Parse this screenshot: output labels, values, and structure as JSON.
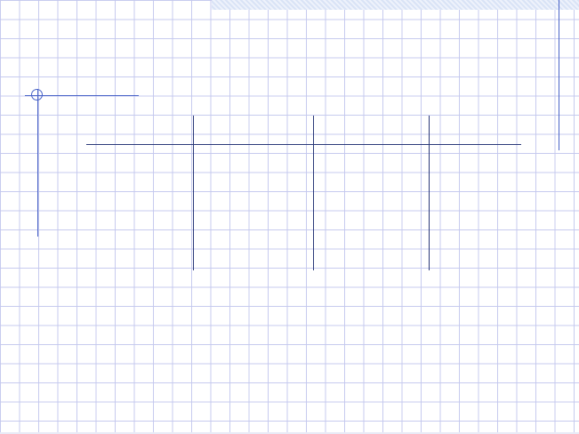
{
  "slide": {
    "grid_color": "#c4c8ee",
    "accent_color": "#4a64c8",
    "table_line_color": "#2b3a7a",
    "title_band_color": "#d9e3f6",
    "title": "",
    "table": {
      "columns": 4,
      "headers": [
        "",
        "",
        "",
        ""
      ],
      "rows": []
    }
  }
}
